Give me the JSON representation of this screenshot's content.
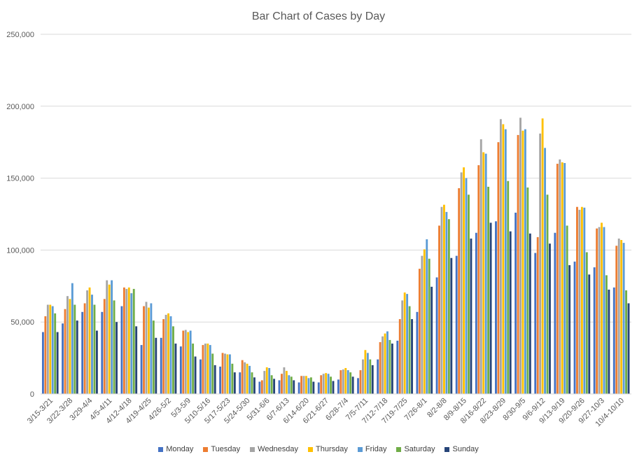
{
  "chart_data": {
    "type": "bar",
    "title": "Bar Chart of Cases by Day",
    "xlabel": "",
    "ylabel": "",
    "ylim": [
      0,
      250000
    ],
    "yticks": [
      "0",
      "50,000",
      "100,000",
      "150,000",
      "200,000",
      "250,000"
    ],
    "grid": true,
    "legend_position": "bottom",
    "categories": [
      "3/15-3/21",
      "3/22-3/28",
      "3/29-4/4",
      "4/5-4/11",
      "4/12-4/18",
      "4/19-4/25",
      "4/26-5/2",
      "5/3-5/9",
      "5/10-5/16",
      "5/17-5/23",
      "5/24-5/30",
      "5/31-6/6",
      "6/7-6/13",
      "6/14-6/20",
      "6/21-6/27",
      "6/28-7/4",
      "7/5-7/11",
      "7/12-7/18",
      "7/19-7/25",
      "7/26-8/1",
      "8/2-8/8",
      "8/9-8/15",
      "8/16-8/22",
      "8/23-8/29",
      "8/30-9/5",
      "9/6-9/12",
      "9/13-9/19",
      "9/20-9/26",
      "9/27-10/3",
      "10/4-10/10"
    ],
    "series": [
      {
        "name": "Monday",
        "color": "#4472C4",
        "values": [
          43000,
          49000,
          57000,
          57000,
          61000,
          34000,
          39000,
          33000,
          24000,
          19000,
          15000,
          8500,
          9500,
          8000,
          8000,
          10000,
          11000,
          24000,
          37000,
          57000,
          81000,
          96000,
          112000,
          120000,
          126000,
          98000,
          112000,
          92000,
          88000,
          74000
        ]
      },
      {
        "name": "Tuesday",
        "color": "#ED7D31",
        "values": [
          54000,
          59000,
          63000,
          66000,
          74000,
          61000,
          52000,
          44000,
          34000,
          28500,
          23500,
          9500,
          14000,
          12500,
          13000,
          16500,
          16500,
          36000,
          52000,
          87000,
          117000,
          143000,
          159000,
          175000,
          180000,
          109000,
          160000,
          130000,
          115000,
          103000
        ]
      },
      {
        "name": "Wednesday",
        "color": "#A5A5A5",
        "values": [
          62000,
          68000,
          72000,
          79000,
          73000,
          64000,
          55000,
          44500,
          35000,
          28000,
          22000,
          16000,
          18500,
          12500,
          14000,
          17000,
          24000,
          40000,
          65000,
          96000,
          130000,
          154000,
          177000,
          191000,
          192000,
          181000,
          163000,
          128000,
          116000,
          108000
        ]
      },
      {
        "name": "Thursday",
        "color": "#FFC000",
        "values": [
          62000,
          66000,
          74000,
          76000,
          74000,
          60000,
          56000,
          43000,
          35000,
          27500,
          21000,
          18500,
          16000,
          12500,
          14500,
          18000,
          30500,
          42000,
          70500,
          100500,
          131500,
          157500,
          168000,
          187500,
          183000,
          191500,
          161000,
          130000,
          119000,
          107000
        ]
      },
      {
        "name": "Friday",
        "color": "#5B9BD5",
        "values": [
          61000,
          77000,
          69000,
          79000,
          70000,
          63000,
          54000,
          44000,
          34000,
          27500,
          19500,
          18000,
          13000,
          11000,
          14000,
          16500,
          28500,
          43500,
          69500,
          107500,
          126500,
          150000,
          167000,
          184000,
          184000,
          171000,
          160500,
          129500,
          116000,
          105000
        ]
      },
      {
        "name": "Saturday",
        "color": "#70AD47",
        "values": [
          56000,
          62000,
          62000,
          65000,
          73000,
          51000,
          47000,
          35000,
          28000,
          21000,
          15000,
          13000,
          12000,
          11500,
          12000,
          15000,
          24000,
          37500,
          61000,
          94000,
          121500,
          138500,
          144000,
          148000,
          143500,
          138500,
          117000,
          98500,
          82500,
          72000
        ]
      },
      {
        "name": "Sunday",
        "color": "#264478",
        "values": [
          43000,
          51000,
          44000,
          50000,
          47000,
          39000,
          35000,
          26000,
          20000,
          15000,
          11500,
          10500,
          9500,
          8500,
          9000,
          12000,
          20000,
          35000,
          52000,
          74500,
          94500,
          108000,
          119000,
          113000,
          111500,
          104500,
          89500,
          83000,
          72500,
          63000
        ]
      }
    ]
  }
}
